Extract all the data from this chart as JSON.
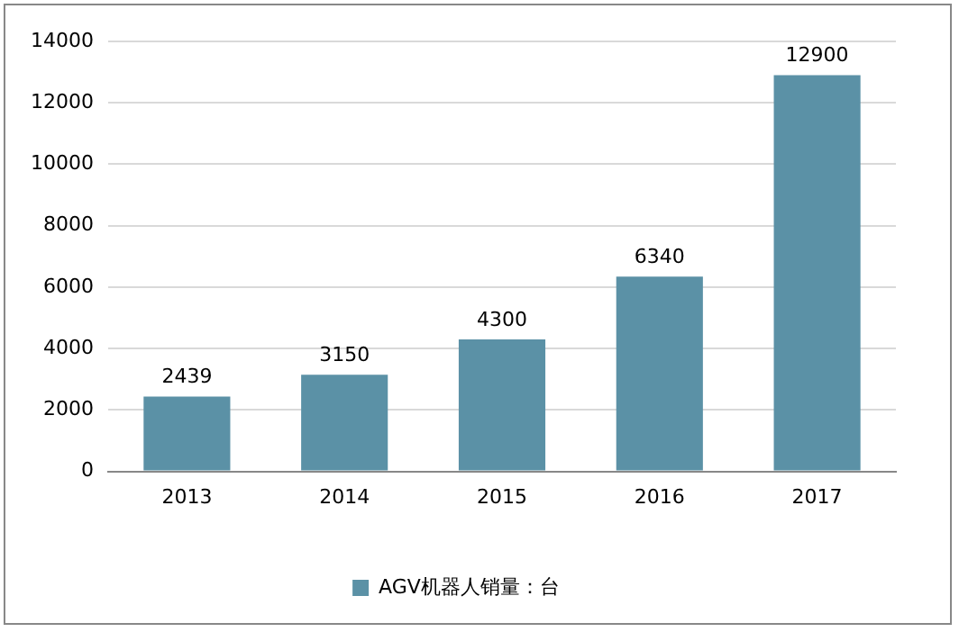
{
  "chart_data": {
    "type": "bar",
    "categories": [
      "2013",
      "2014",
      "2015",
      "2016",
      "2017"
    ],
    "series": [
      {
        "name": "AGV机器人销量：台",
        "color": "#5b91a6",
        "values": [
          2439,
          3150,
          4300,
          6340,
          12900
        ]
      }
    ],
    "ylim": [
      0,
      14000
    ],
    "yticks": [
      0,
      2000,
      4000,
      6000,
      8000,
      10000,
      12000,
      14000
    ],
    "grid": "y",
    "legend": "bottom",
    "data_labels": true
  }
}
